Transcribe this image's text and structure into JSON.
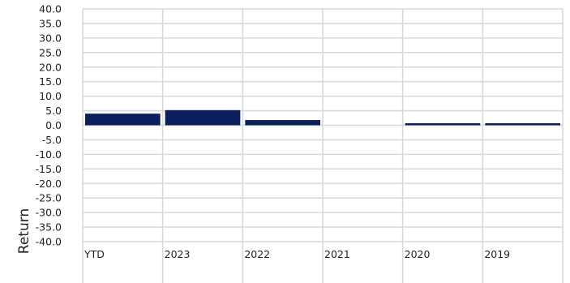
{
  "chart_data": {
    "type": "bar",
    "categories": [
      "YTD",
      "2023",
      "2022",
      "2021",
      "2020",
      "2019"
    ],
    "series": [
      {
        "values": [
          4.0,
          5.2,
          1.8,
          0.0,
          0.7,
          0.7
        ]
      }
    ],
    "title": "",
    "xlabel": "",
    "ylabel": "Return",
    "ylim": [
      -40,
      40
    ],
    "ytick_step": 5,
    "ytick_labels": [
      "40.0",
      "35.0",
      "30.0",
      "25.0",
      "20.0",
      "15.0",
      "10.0",
      "5.0",
      "0.0",
      "-5.0",
      "-10.0",
      "-15.0",
      "-20.0",
      "-25.0",
      "-30.0",
      "-35.0",
      "-40.0"
    ],
    "grid": true,
    "legend": "none",
    "colors": {
      "bar": "#0b1f5c",
      "grid": "#d9d9d9",
      "text": "#222222"
    }
  }
}
